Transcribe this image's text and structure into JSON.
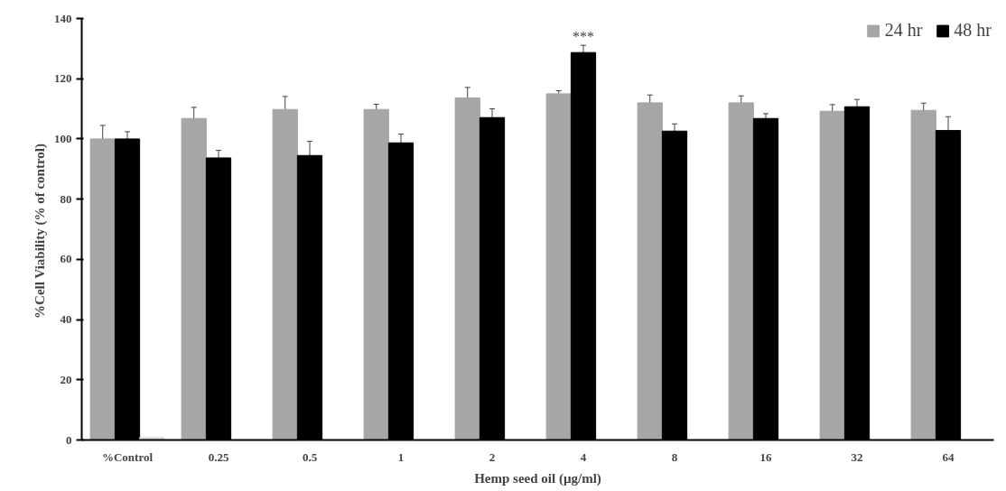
{
  "chart_data": {
    "type": "bar",
    "xlabel": "Hemp seed oil (µg/ml)",
    "ylabel": "%Cell Viability  (% of control)",
    "categories": [
      "%Control",
      "0.25",
      "0.5",
      "1",
      "2",
      "4",
      "8",
      "16",
      "32",
      "64"
    ],
    "series": [
      {
        "name": "24 hr",
        "color": "#a6a6a6",
        "values": [
          100,
          106.8,
          109.8,
          109.8,
          113.6,
          115,
          112,
          112,
          109.2,
          109.5
        ],
        "errors": [
          4.5,
          3.7,
          4.3,
          1.7,
          3.5,
          1,
          2.6,
          2.3,
          2.2,
          2.4
        ]
      },
      {
        "name": "48 hr",
        "color": "#000000",
        "values": [
          100,
          93.7,
          94.5,
          98.7,
          107.1,
          128.7,
          102.6,
          106.8,
          110.7,
          102.8
        ],
        "errors": [
          2.4,
          2.5,
          4.7,
          2.9,
          2.9,
          2.4,
          2.4,
          1.6,
          2.4,
          4.6
        ]
      },
      {
        "color": "#d9d9d9",
        "values": [
          0.8,
          null,
          null,
          null,
          null,
          null,
          null,
          null,
          null,
          null
        ]
      }
    ],
    "ylim": [
      0,
      140
    ],
    "yticks": [
      0,
      20,
      40,
      60,
      80,
      100,
      120,
      140
    ],
    "grid": false,
    "legend": "top right",
    "annotations": [
      {
        "text": "***",
        "x": "4",
        "y": 128.7
      }
    ]
  }
}
